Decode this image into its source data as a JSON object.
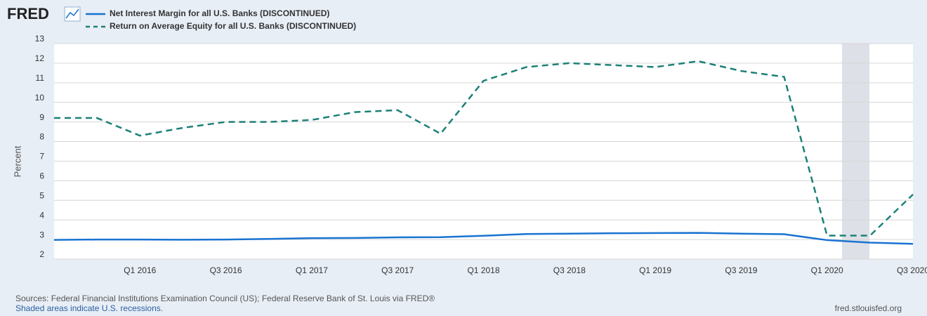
{
  "chart_data": {
    "type": "line",
    "logo": "FRED",
    "y_label": "Percent",
    "categories": [
      null,
      null,
      "Q1 2016",
      null,
      "Q3 2016",
      null,
      "Q1 2017",
      null,
      "Q3 2017",
      null,
      "Q1 2018",
      null,
      "Q3 2018",
      null,
      "Q1 2019",
      null,
      "Q3 2019",
      null,
      "Q1 2020",
      null,
      "Q3 2020"
    ],
    "series": [
      {
        "name": "Net Interest Margin for all U.S. Banks (DISCONTINUED)",
        "color": "#1a73d1",
        "dash": false,
        "values": [
          2.98,
          3.0,
          3.0,
          2.99,
          3.0,
          3.03,
          3.07,
          3.08,
          3.11,
          3.12,
          3.19,
          3.28,
          3.3,
          3.32,
          3.33,
          3.34,
          3.3,
          3.27,
          2.97,
          2.84,
          2.78
        ]
      },
      {
        "name": "Return on Average Equity for all U.S. Banks (DISCONTINUED)",
        "color": "#1b8178",
        "dash": true,
        "values": [
          9.2,
          9.2,
          8.3,
          8.7,
          9.0,
          9.0,
          9.1,
          9.5,
          9.6,
          8.4,
          11.1,
          11.8,
          12.0,
          11.9,
          11.8,
          12.1,
          11.6,
          11.3,
          3.2,
          3.2,
          5.3
        ]
      }
    ],
    "ylim": [
      2,
      13
    ],
    "yticks": [
      2,
      3,
      4,
      5,
      6,
      7,
      8,
      9,
      10,
      11,
      12,
      13
    ],
    "grid": true,
    "source": "Sources: Federal Financial Institutions Examination Council (US); Federal Reserve Bank of St. Louis via FRED®",
    "note": "Shaded areas indicate U.S. recessions.",
    "site": "fred.stlouisfed.org"
  }
}
